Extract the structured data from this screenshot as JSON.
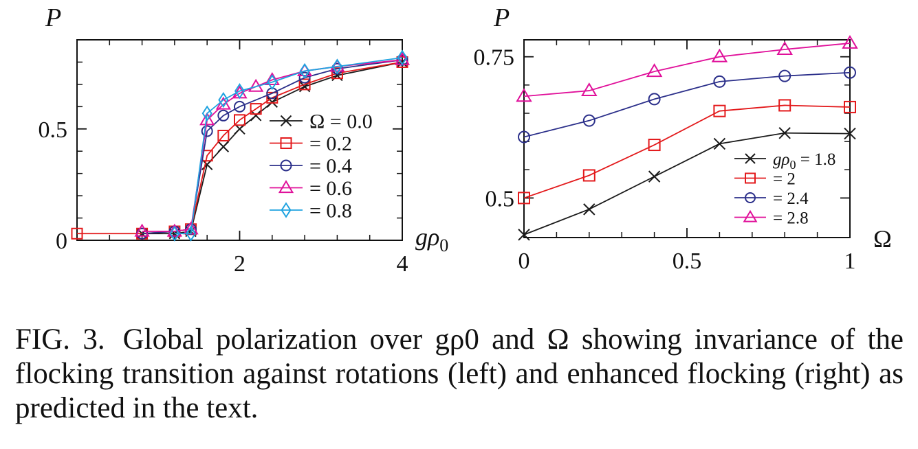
{
  "caption": {
    "label": "FIG. 3.",
    "text": "Global polarization over gρ0 and Ω showing invariance of the flocking transition against rotations (left) and enhanced flocking (right) as predicted in the text."
  },
  "chart_data": [
    {
      "type": "line",
      "title": "",
      "xlabel": "gρ0",
      "ylabel": "P",
      "xlim": [
        0,
        4
      ],
      "ylim": [
        0,
        0.9
      ],
      "xticks": [
        2,
        4
      ],
      "xtick_labels": [
        "2",
        "4"
      ],
      "yticks": [
        0,
        0.5
      ],
      "ytick_labels": [
        "0",
        "0.5"
      ],
      "grid": false,
      "legend": "center-right",
      "series": [
        {
          "name": "Ω = 0.0",
          "marker": "x",
          "color": "#1a1a1a",
          "x": [
            0.8,
            1.2,
            1.4,
            1.6,
            1.8,
            2.0,
            2.2,
            2.4,
            2.8,
            3.2,
            4.0
          ],
          "y": [
            0.03,
            0.03,
            0.04,
            0.34,
            0.42,
            0.5,
            0.56,
            0.62,
            0.69,
            0.74,
            0.8
          ]
        },
        {
          "name": "= 0.2",
          "marker": "square",
          "color": "#e31a1c",
          "x": [
            0.0,
            0.8,
            1.2,
            1.4,
            1.6,
            1.8,
            2.0,
            2.2,
            2.4,
            2.8,
            3.2,
            4.0
          ],
          "y": [
            0.03,
            0.03,
            0.04,
            0.05,
            0.38,
            0.47,
            0.54,
            0.59,
            0.64,
            0.7,
            0.75,
            0.8
          ]
        },
        {
          "name": "= 0.4",
          "marker": "circle",
          "color": "#2b2f8a",
          "x": [
            0.8,
            1.2,
            1.4,
            1.6,
            1.8,
            2.0,
            2.4,
            2.8,
            3.2,
            4.0
          ],
          "y": [
            0.03,
            0.04,
            0.05,
            0.49,
            0.56,
            0.6,
            0.66,
            0.73,
            0.77,
            0.81
          ]
        },
        {
          "name": "= 0.6",
          "marker": "triangle",
          "color": "#e0109a",
          "x": [
            0.8,
            1.2,
            1.4,
            1.6,
            1.8,
            2.0,
            2.2,
            2.4,
            2.8,
            3.2,
            4.0
          ],
          "y": [
            0.04,
            0.04,
            0.05,
            0.54,
            0.61,
            0.66,
            0.69,
            0.72,
            0.76,
            0.78,
            0.81
          ]
        },
        {
          "name": "= 0.8",
          "marker": "diamond",
          "color": "#1fa3e0",
          "x": [
            1.2,
            1.4,
            1.6,
            1.8,
            2.0,
            2.4,
            2.8,
            3.2,
            4.0
          ],
          "y": [
            0.03,
            0.03,
            0.57,
            0.63,
            0.67,
            0.71,
            0.76,
            0.78,
            0.82
          ]
        }
      ]
    },
    {
      "type": "line",
      "title": "",
      "xlabel": "Ω",
      "ylabel": "P",
      "xlim": [
        0,
        1
      ],
      "ylim": [
        0.43,
        0.78
      ],
      "xticks": [
        0,
        0.5,
        1
      ],
      "xtick_labels": [
        "0",
        "0.5",
        "1"
      ],
      "yticks": [
        0.5,
        0.75
      ],
      "ytick_labels": [
        "0.5",
        "0.75"
      ],
      "grid": false,
      "legend": "bottom-right",
      "series": [
        {
          "name": "gρ0 = 1.8",
          "marker": "x",
          "color": "#1a1a1a",
          "x": [
            0,
            0.2,
            0.4,
            0.6,
            0.8,
            1.0
          ],
          "y": [
            0.435,
            0.48,
            0.538,
            0.596,
            0.615,
            0.614
          ]
        },
        {
          "name": "= 2",
          "marker": "square",
          "color": "#e31a1c",
          "x": [
            0,
            0.2,
            0.4,
            0.6,
            0.8,
            1.0
          ],
          "y": [
            0.5,
            0.54,
            0.594,
            0.654,
            0.664,
            0.661
          ]
        },
        {
          "name": "= 2.4",
          "marker": "circle",
          "color": "#2b2f8a",
          "x": [
            0,
            0.2,
            0.4,
            0.6,
            0.8,
            1.0
          ],
          "y": [
            0.608,
            0.637,
            0.675,
            0.706,
            0.716,
            0.722
          ]
        },
        {
          "name": "= 2.8",
          "marker": "triangle",
          "color": "#e0109a",
          "x": [
            0,
            0.2,
            0.4,
            0.6,
            0.8,
            1.0
          ],
          "y": [
            0.68,
            0.69,
            0.724,
            0.75,
            0.763,
            0.774
          ]
        }
      ]
    }
  ]
}
